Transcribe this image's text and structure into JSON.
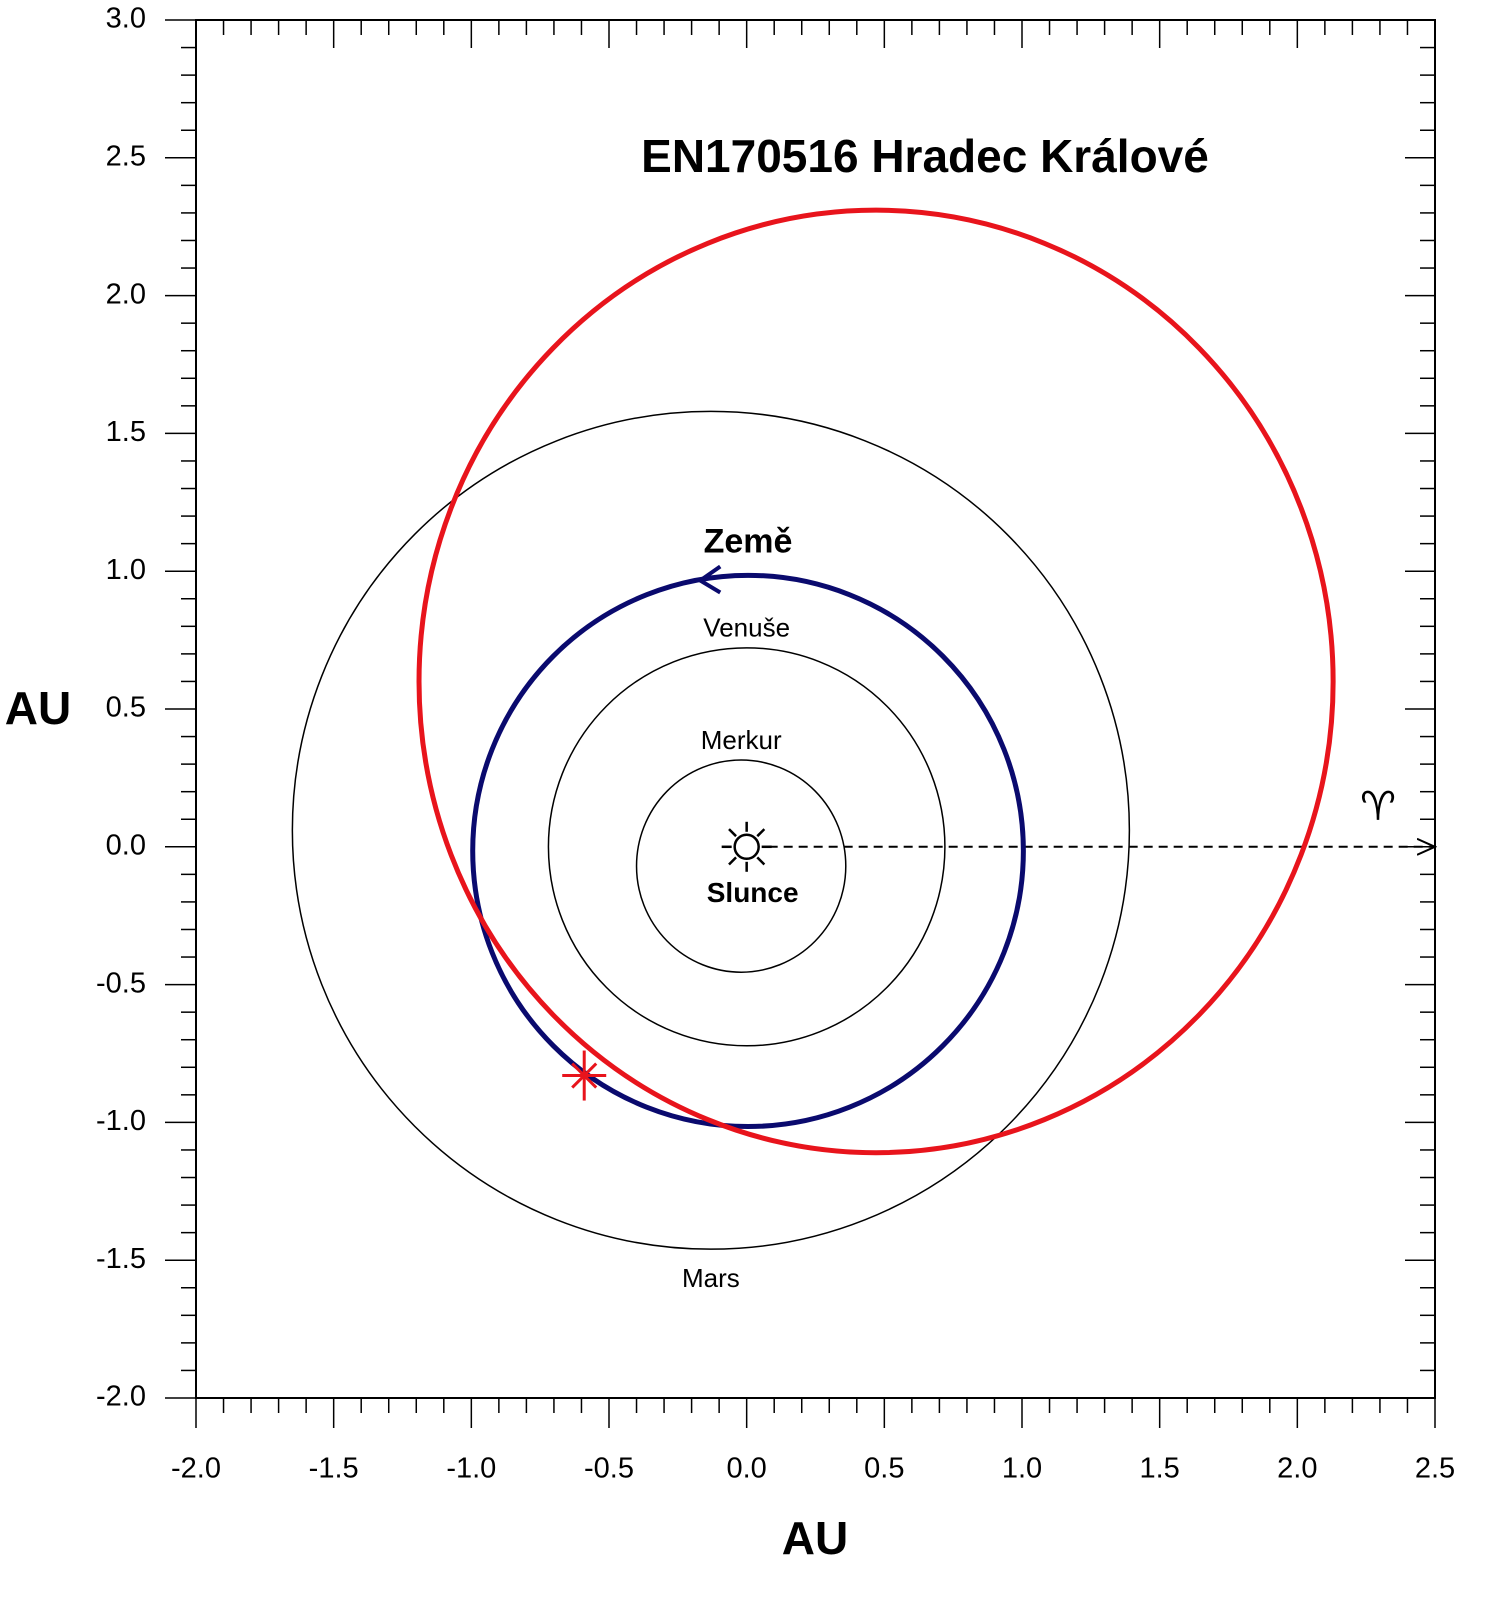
{
  "chart_data": {
    "type": "orbit",
    "title": "EN170516 Hradec Králové",
    "title_color": "#e8141c",
    "xlabel": "AU",
    "ylabel": "AU",
    "xlim": [
      -2.0,
      2.5
    ],
    "ylim": [
      -2.0,
      3.0
    ],
    "xticks": [
      {
        "value": -2,
        "label": "-2.0"
      },
      {
        "value": -1.5,
        "label": "-1.5"
      },
      {
        "value": -1,
        "label": "-1.0"
      },
      {
        "value": -0.5,
        "label": "-0.5"
      },
      {
        "value": 0,
        "label": "0.0"
      },
      {
        "value": 0.5,
        "label": "0.5"
      },
      {
        "value": 1,
        "label": "1.0"
      },
      {
        "value": 1.5,
        "label": "1.5"
      },
      {
        "value": 2,
        "label": "2.0"
      },
      {
        "value": 2.5,
        "label": "2.5"
      }
    ],
    "yticks": [
      {
        "value": -2,
        "label": "-2.0"
      },
      {
        "value": -1.5,
        "label": "-1.5"
      },
      {
        "value": -1,
        "label": "-1.0"
      },
      {
        "value": -0.5,
        "label": "-0.5"
      },
      {
        "value": 0,
        "label": "0.0"
      },
      {
        "value": 0.5,
        "label": "0.5"
      },
      {
        "value": 1,
        "label": "1.0"
      },
      {
        "value": 1.5,
        "label": "1.5"
      },
      {
        "value": 2,
        "label": "2.0"
      },
      {
        "value": 2.5,
        "label": "2.5"
      },
      {
        "value": 3,
        "label": "3.0"
      }
    ],
    "center_label": "Slunce",
    "center": [
      0,
      0
    ],
    "orbits": [
      {
        "name": "Merkur",
        "center": [
          -0.02,
          -0.07
        ],
        "radii": [
          0.38,
          0.385
        ],
        "color": "#000000",
        "bold": false
      },
      {
        "name": "Venuše",
        "center": [
          0.0,
          0.0
        ],
        "radii": [
          0.72,
          0.722
        ],
        "color": "#000000",
        "bold": false
      },
      {
        "name": "Země",
        "center": [
          0.005,
          -0.015
        ],
        "radii": [
          1.0,
          1.0
        ],
        "color": "#0a0a6e",
        "bold": true
      },
      {
        "name": "Mars",
        "center": [
          -0.13,
          0.06
        ],
        "radii": [
          1.52,
          1.52
        ],
        "color": "#000000",
        "bold": false
      }
    ],
    "fireball_orbit": {
      "center": [
        0.47,
        0.6
      ],
      "radii": [
        1.66,
        1.71
      ],
      "color": "#e8141c"
    },
    "impact": [
      -0.59,
      -0.83
    ],
    "equinox_symbol": "♈"
  }
}
